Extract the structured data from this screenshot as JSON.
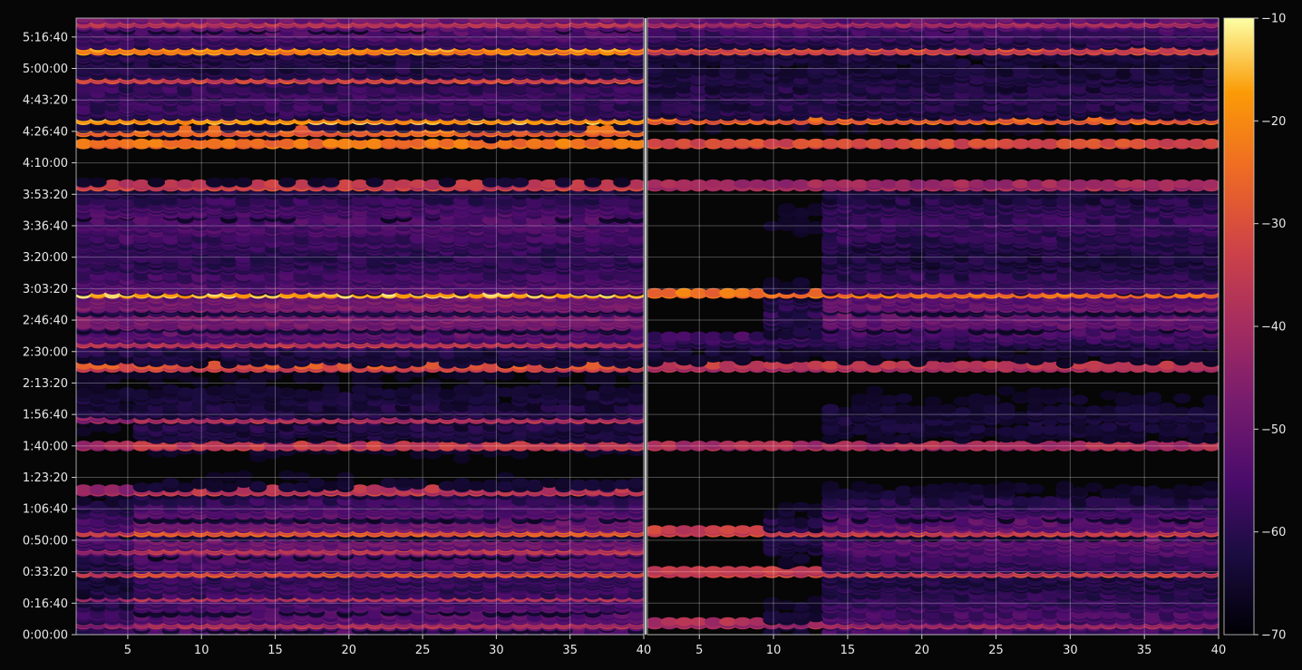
{
  "chart_data": [
    {
      "type": "heatmap",
      "panel": "left",
      "x_range": [
        1.5,
        40
      ],
      "x_ticks": [
        5,
        10,
        15,
        20,
        25,
        30,
        35,
        40
      ],
      "y_ticks": [
        "0:00:00",
        "0:16:40",
        "0:33:20",
        "0:50:00",
        "1:06:40",
        "1:23:20",
        "1:40:00",
        "1:56:40",
        "2:13:20",
        "2:30:00",
        "2:46:40",
        "3:03:20",
        "3:20:00",
        "3:36:40",
        "3:53:20",
        "4:10:00",
        "4:26:40",
        "4:43:20",
        "5:00:00",
        "5:16:40"
      ],
      "y_range_seconds": [
        0,
        19600
      ],
      "grid": true,
      "highlight_rows_seconds": [
        {
          "t": 360,
          "value": -42
        },
        {
          "t": 1200,
          "value": -40
        },
        {
          "t": 2000,
          "value": -34
        },
        {
          "t": 2700,
          "value": -40
        },
        {
          "t": 3300,
          "value": -32
        },
        {
          "t": 4600,
          "value": -40
        },
        {
          "t": 6000,
          "value": -38
        },
        {
          "t": 6900,
          "value": -42
        },
        {
          "t": 8500,
          "value": -36
        },
        {
          "t": 9300,
          "value": -40
        },
        {
          "t": 10850,
          "value": -18
        },
        {
          "t": 14300,
          "value": -38
        },
        {
          "t": 15600,
          "value": -26
        },
        {
          "t": 16000,
          "value": -30
        },
        {
          "t": 16400,
          "value": -22
        },
        {
          "t": 17700,
          "value": -36
        },
        {
          "t": 18600,
          "value": -24
        },
        {
          "t": 19450,
          "value": -40
        }
      ]
    },
    {
      "type": "heatmap",
      "panel": "right",
      "x_range": [
        1.5,
        40
      ],
      "x_ticks": [
        5,
        10,
        15,
        20,
        25,
        30,
        35,
        40
      ],
      "y_range_seconds": [
        0,
        19600
      ],
      "grid": true,
      "highlight_rows_seconds": [
        {
          "t": 360,
          "value": -44
        },
        {
          "t": 2000,
          "value": -38
        },
        {
          "t": 3300,
          "value": -38
        },
        {
          "t": 6000,
          "value": -42
        },
        {
          "t": 8500,
          "value": -42
        },
        {
          "t": 10850,
          "value": -26
        },
        {
          "t": 14300,
          "value": -44
        },
        {
          "t": 15600,
          "value": -34
        },
        {
          "t": 16400,
          "value": -30
        },
        {
          "t": 18600,
          "value": -36
        },
        {
          "t": 19450,
          "value": -44
        }
      ]
    }
  ],
  "colorbar": {
    "colormap": "inferno",
    "range": [
      -70,
      -10
    ],
    "ticks": [
      "−10",
      "−20",
      "−30",
      "−40",
      "−50",
      "−60",
      "−70"
    ]
  },
  "colors": {
    "background": "#060606",
    "grid": "#ffffff",
    "text": "#e8e8e8"
  }
}
